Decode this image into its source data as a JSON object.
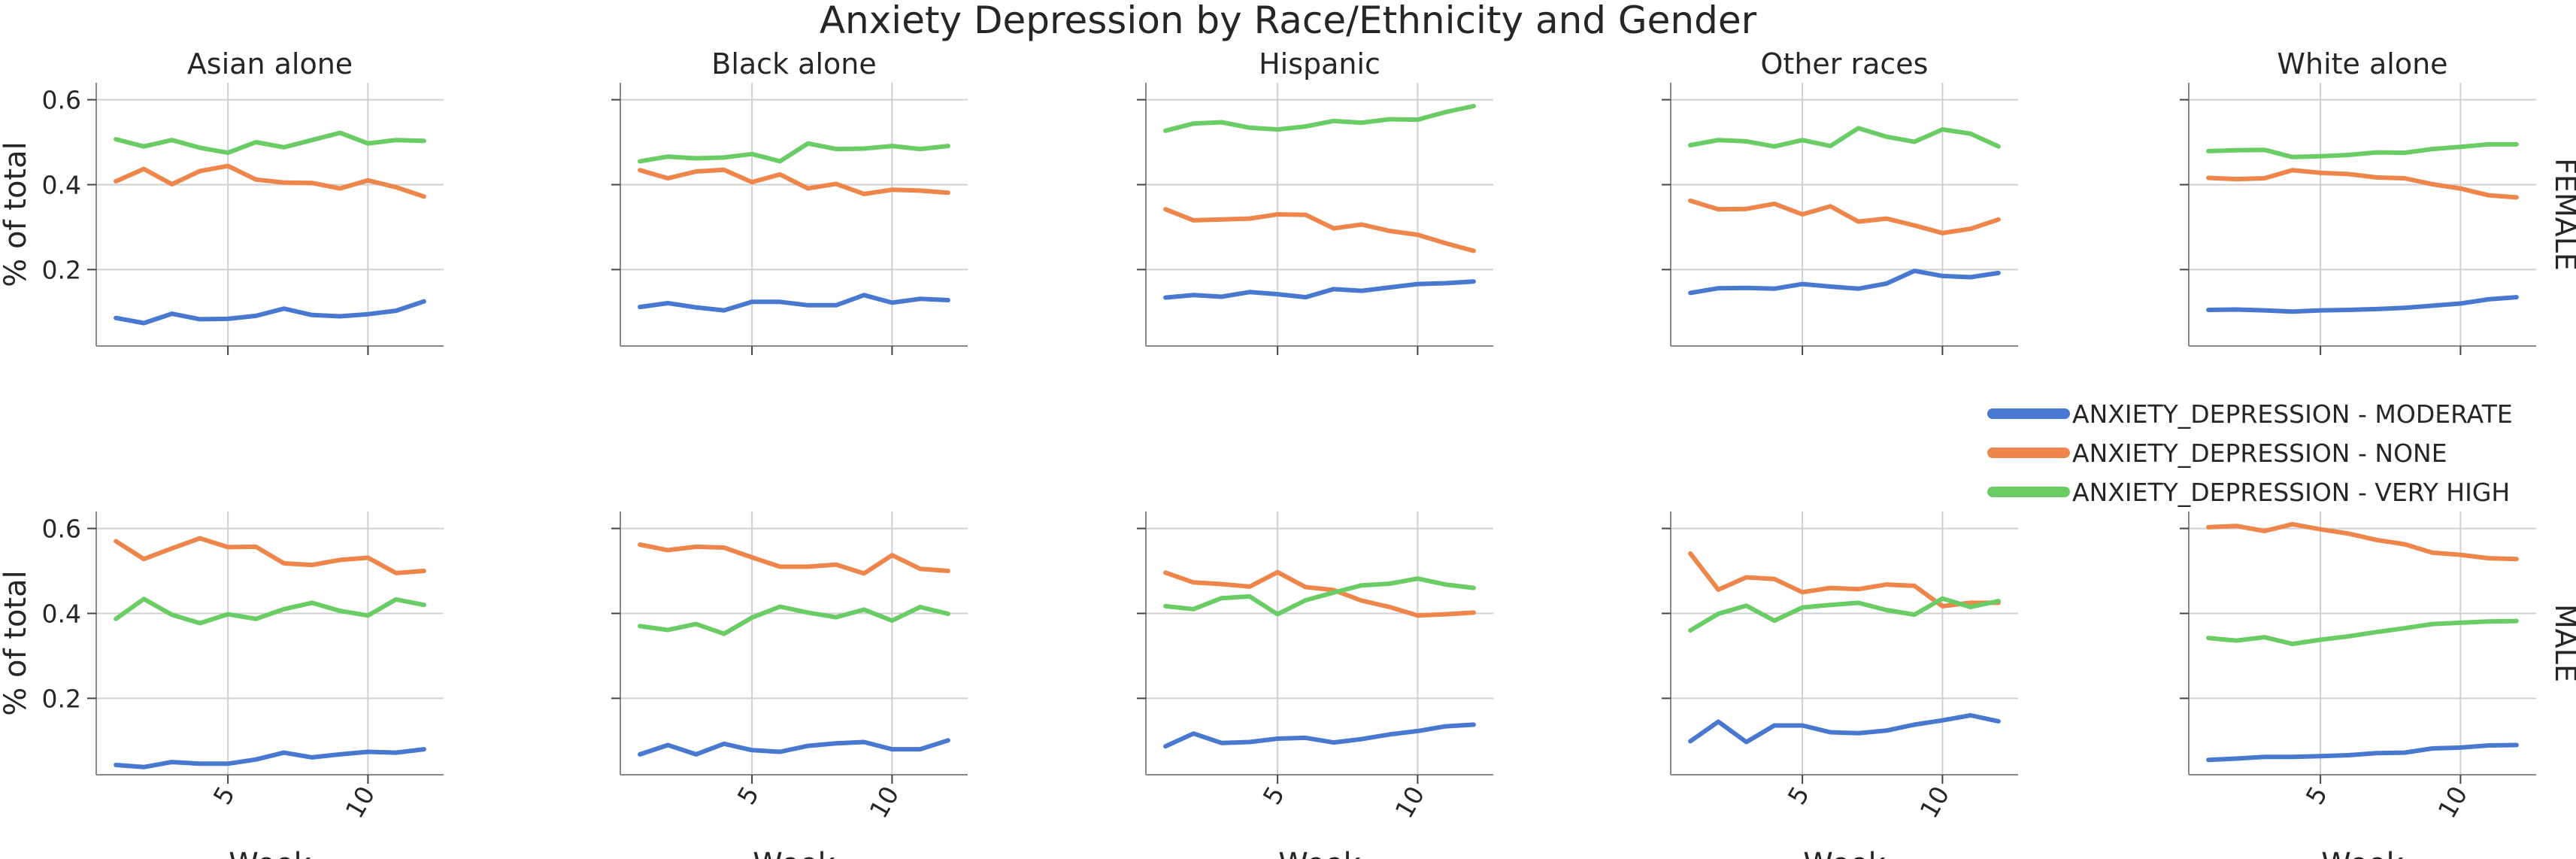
{
  "chart_data": {
    "type": "line",
    "title": "Anxiety Depression by Race/Ethnicity and Gender",
    "xlabel": "Week",
    "ylabel": "% of total",
    "xlim": [
      0.3,
      12.7
    ],
    "ylim": [
      0.02,
      0.64
    ],
    "yticks": [
      0.2,
      0.4,
      0.6
    ],
    "ytick_labels": [
      "0.2",
      "0.4",
      "0.6"
    ],
    "xticks": [
      5,
      10
    ],
    "xtick_labels": [
      "5",
      "10"
    ],
    "grid": true,
    "legend_position": "right",
    "x": [
      1,
      2,
      3,
      4,
      5,
      6,
      7,
      8,
      9,
      10,
      11,
      12
    ],
    "columns": [
      "Asian alone",
      "Black alone",
      "Hispanic",
      "Other races",
      "White alone"
    ],
    "rows": [
      "FEMALE",
      "MALE"
    ],
    "series": [
      {
        "name": "ANXIETY_DEPRESSION - MODERATE",
        "color": "#4878d0"
      },
      {
        "name": "ANXIETY_DEPRESSION - NONE",
        "color": "#ee854a"
      },
      {
        "name": "ANXIETY_DEPRESSION - VERY HIGH",
        "color": "#6acc64"
      }
    ],
    "panels": [
      {
        "row": "FEMALE",
        "column": "Asian alone",
        "values": [
          [
            0.086,
            0.074,
            0.096,
            0.083,
            0.084,
            0.091,
            0.108,
            0.093,
            0.09,
            0.095,
            0.103,
            0.125
          ],
          [
            0.408,
            0.437,
            0.401,
            0.432,
            0.444,
            0.412,
            0.405,
            0.404,
            0.391,
            0.41,
            0.394,
            0.372
          ],
          [
            0.507,
            0.49,
            0.505,
            0.487,
            0.475,
            0.5,
            0.488,
            0.505,
            0.522,
            0.497,
            0.505,
            0.503
          ]
        ]
      },
      {
        "row": "FEMALE",
        "column": "Black alone",
        "values": [
          [
            0.112,
            0.121,
            0.111,
            0.104,
            0.124,
            0.124,
            0.116,
            0.116,
            0.14,
            0.122,
            0.131,
            0.128
          ],
          [
            0.434,
            0.415,
            0.431,
            0.435,
            0.406,
            0.424,
            0.391,
            0.402,
            0.378,
            0.388,
            0.386,
            0.381
          ],
          [
            0.455,
            0.466,
            0.462,
            0.464,
            0.472,
            0.455,
            0.497,
            0.484,
            0.485,
            0.491,
            0.484,
            0.491
          ]
        ]
      },
      {
        "row": "FEMALE",
        "column": "Hispanic",
        "values": [
          [
            0.134,
            0.14,
            0.136,
            0.147,
            0.142,
            0.135,
            0.154,
            0.15,
            0.158,
            0.166,
            0.168,
            0.172
          ],
          [
            0.342,
            0.316,
            0.318,
            0.32,
            0.33,
            0.329,
            0.297,
            0.306,
            0.291,
            0.282,
            0.262,
            0.244
          ],
          [
            0.527,
            0.544,
            0.547,
            0.534,
            0.53,
            0.537,
            0.55,
            0.546,
            0.554,
            0.553,
            0.571,
            0.585
          ]
        ]
      },
      {
        "row": "FEMALE",
        "column": "Other races",
        "values": [
          [
            0.145,
            0.156,
            0.157,
            0.155,
            0.166,
            0.16,
            0.155,
            0.167,
            0.197,
            0.185,
            0.182,
            0.192
          ],
          [
            0.362,
            0.342,
            0.343,
            0.355,
            0.33,
            0.349,
            0.313,
            0.32,
            0.304,
            0.286,
            0.296,
            0.318
          ],
          [
            0.493,
            0.505,
            0.502,
            0.49,
            0.505,
            0.491,
            0.533,
            0.513,
            0.501,
            0.53,
            0.52,
            0.49
          ]
        ]
      },
      {
        "row": "FEMALE",
        "column": "White alone",
        "values": [
          [
            0.105,
            0.106,
            0.104,
            0.101,
            0.104,
            0.105,
            0.107,
            0.11,
            0.115,
            0.12,
            0.13,
            0.135
          ],
          [
            0.416,
            0.413,
            0.415,
            0.434,
            0.428,
            0.425,
            0.417,
            0.415,
            0.401,
            0.391,
            0.375,
            0.37
          ],
          [
            0.479,
            0.481,
            0.482,
            0.465,
            0.467,
            0.47,
            0.476,
            0.475,
            0.484,
            0.489,
            0.495,
            0.495
          ]
        ]
      },
      {
        "row": "MALE",
        "column": "Asian alone",
        "values": [
          [
            0.043,
            0.038,
            0.05,
            0.046,
            0.046,
            0.056,
            0.072,
            0.061,
            0.068,
            0.074,
            0.072,
            0.08
          ],
          [
            0.57,
            0.528,
            0.553,
            0.577,
            0.556,
            0.557,
            0.518,
            0.514,
            0.526,
            0.531,
            0.495,
            0.5
          ],
          [
            0.387,
            0.434,
            0.397,
            0.377,
            0.398,
            0.387,
            0.41,
            0.425,
            0.406,
            0.395,
            0.433,
            0.42
          ]
        ]
      },
      {
        "row": "MALE",
        "column": "Black alone",
        "values": [
          [
            0.068,
            0.09,
            0.068,
            0.093,
            0.078,
            0.074,
            0.088,
            0.094,
            0.097,
            0.08,
            0.08,
            0.101
          ],
          [
            0.562,
            0.549,
            0.557,
            0.555,
            0.532,
            0.51,
            0.51,
            0.515,
            0.494,
            0.537,
            0.505,
            0.5
          ],
          [
            0.37,
            0.361,
            0.375,
            0.352,
            0.39,
            0.416,
            0.402,
            0.391,
            0.409,
            0.383,
            0.415,
            0.399
          ]
        ]
      },
      {
        "row": "MALE",
        "column": "Hispanic",
        "values": [
          [
            0.087,
            0.117,
            0.095,
            0.097,
            0.105,
            0.107,
            0.096,
            0.104,
            0.115,
            0.123,
            0.134,
            0.138
          ],
          [
            0.496,
            0.473,
            0.469,
            0.463,
            0.497,
            0.462,
            0.455,
            0.43,
            0.415,
            0.395,
            0.398,
            0.402
          ],
          [
            0.417,
            0.41,
            0.436,
            0.44,
            0.398,
            0.431,
            0.449,
            0.466,
            0.47,
            0.482,
            0.468,
            0.46
          ]
        ]
      },
      {
        "row": "MALE",
        "column": "Other races",
        "values": [
          [
            0.099,
            0.145,
            0.097,
            0.136,
            0.136,
            0.12,
            0.118,
            0.124,
            0.138,
            0.148,
            0.16,
            0.146
          ],
          [
            0.541,
            0.456,
            0.485,
            0.481,
            0.45,
            0.46,
            0.457,
            0.468,
            0.465,
            0.417,
            0.425,
            0.425
          ],
          [
            0.36,
            0.399,
            0.418,
            0.383,
            0.414,
            0.42,
            0.425,
            0.408,
            0.397,
            0.435,
            0.415,
            0.429
          ]
        ]
      },
      {
        "row": "MALE",
        "column": "White alone",
        "values": [
          [
            0.055,
            0.058,
            0.062,
            0.062,
            0.064,
            0.066,
            0.071,
            0.072,
            0.082,
            0.084,
            0.089,
            0.09
          ],
          [
            0.603,
            0.606,
            0.594,
            0.61,
            0.598,
            0.588,
            0.573,
            0.563,
            0.543,
            0.538,
            0.53,
            0.528
          ],
          [
            0.342,
            0.336,
            0.344,
            0.328,
            0.338,
            0.346,
            0.356,
            0.365,
            0.375,
            0.378,
            0.381,
            0.382
          ]
        ]
      }
    ]
  }
}
